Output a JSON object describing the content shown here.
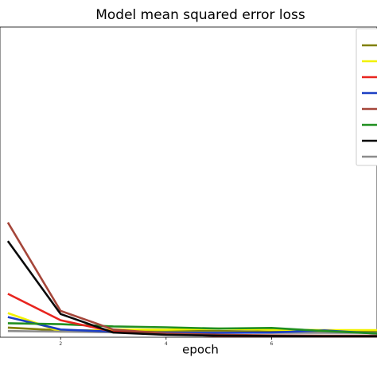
{
  "chart_data": {
    "type": "line",
    "title": "Model mean squared error loss",
    "xlabel": "epoch",
    "ylabel": "",
    "xlim": [
      0.85,
      8
    ],
    "ylim": [
      0,
      1
    ],
    "x_ticks": [
      2,
      4,
      6
    ],
    "x_tick_labels": [
      "2",
      "4",
      "6"
    ],
    "grid": false,
    "legend": {
      "placement": "top-right",
      "entries": 8,
      "labels_visible": false
    },
    "series": [
      {
        "color": "#808000",
        "x": [
          1,
          2,
          3,
          4,
          5,
          6,
          7,
          8
        ],
        "y": [
          0.031,
          0.022,
          0.022,
          0.021,
          0.02,
          0.018,
          0.018,
          0.018
        ]
      },
      {
        "color": "#f2f200",
        "x": [
          1,
          2,
          3,
          4,
          5,
          6,
          7,
          8
        ],
        "y": [
          0.078,
          0.018,
          0.025,
          0.024,
          0.028,
          0.024,
          0.023,
          0.023
        ]
      },
      {
        "color": "#e8251f",
        "x": [
          1,
          2,
          3,
          4,
          5,
          6,
          7,
          8
        ],
        "y": [
          0.14,
          0.055,
          0.018,
          0.01,
          0.004,
          0.004,
          0.003,
          0.003
        ]
      },
      {
        "color": "#1c3fc4",
        "x": [
          1,
          2,
          3,
          4,
          5,
          6,
          7,
          8
        ],
        "y": [
          0.065,
          0.025,
          0.018,
          0.014,
          0.014,
          0.015,
          0.022,
          0.012
        ]
      },
      {
        "color": "#a5463a",
        "x": [
          1,
          2,
          3,
          4,
          5,
          6,
          7,
          8
        ],
        "y": [
          0.37,
          0.085,
          0.025,
          0.012,
          0.008,
          0.006,
          0.005,
          0.005
        ]
      },
      {
        "color": "#208f20",
        "x": [
          1,
          2,
          3,
          4,
          5,
          6,
          7,
          8
        ],
        "y": [
          0.045,
          0.042,
          0.035,
          0.032,
          0.028,
          0.03,
          0.02,
          0.012
        ]
      },
      {
        "color": "#0a0a0a",
        "x": [
          1,
          2,
          3,
          4,
          5,
          6,
          7,
          8
        ],
        "y": [
          0.31,
          0.075,
          0.015,
          0.008,
          0.005,
          0.004,
          0.003,
          0.003
        ]
      },
      {
        "color": "#8c8c8c",
        "x": [
          1,
          2,
          3,
          4,
          5,
          6,
          7,
          8
        ],
        "y": [
          0.02,
          0.018,
          0.016,
          0.015,
          0.015,
          0.014,
          0.014,
          0.014
        ]
      }
    ]
  }
}
